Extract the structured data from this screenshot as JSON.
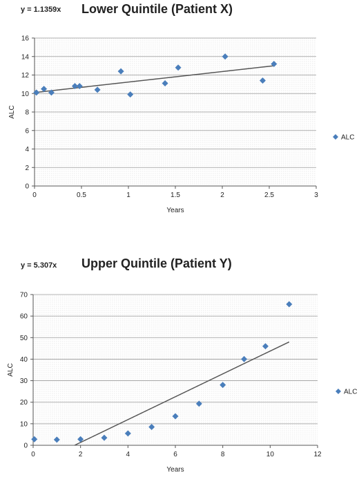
{
  "chart_data": [
    {
      "type": "scatter",
      "title": "Lower Quintile (Patient X)",
      "equation": "y = 1.1359x",
      "xlabel": "Years",
      "ylabel": "ALC",
      "xlim": [
        0,
        3
      ],
      "ylim": [
        0,
        16
      ],
      "xticks": [
        "0",
        "0.5",
        "1",
        "1.5",
        "2",
        "2.5",
        "3"
      ],
      "yticks": [
        "0",
        "2",
        "4",
        "6",
        "8",
        "10",
        "12",
        "14",
        "16"
      ],
      "grid": true,
      "legend_position": "right",
      "series": [
        {
          "name": "ALC",
          "color": "#4a7ebb",
          "x": [
            0.02,
            0.1,
            0.18,
            0.43,
            0.48,
            0.67,
            0.92,
            1.02,
            1.39,
            1.53,
            2.03,
            2.43,
            2.55
          ],
          "y": [
            10.1,
            10.5,
            10.1,
            10.8,
            10.8,
            10.4,
            12.4,
            9.9,
            11.1,
            12.8,
            14.0,
            11.4,
            13.2
          ]
        }
      ],
      "trendline": {
        "x": [
          0,
          2.55
        ],
        "y": [
          10.1,
          13.0
        ],
        "color": "#555555"
      }
    },
    {
      "type": "scatter",
      "title": "Upper Quintile (Patient Y)",
      "equation": "y = 5.307x",
      "xlabel": "Years",
      "ylabel": "ALC",
      "xlim": [
        0,
        12
      ],
      "ylim": [
        0,
        70
      ],
      "xticks": [
        "0",
        "2",
        "4",
        "6",
        "8",
        "10",
        "12"
      ],
      "yticks": [
        "0",
        "10",
        "20",
        "30",
        "40",
        "50",
        "60",
        "70"
      ],
      "grid": true,
      "legend_position": "right",
      "series": [
        {
          "name": "ALC",
          "color": "#4a7ebb",
          "x": [
            0.05,
            1.0,
            2.0,
            3.0,
            4.0,
            5.0,
            6.0,
            7.0,
            8.0,
            8.9,
            9.8,
            10.8
          ],
          "y": [
            2.8,
            2.6,
            2.8,
            3.5,
            5.5,
            8.5,
            13.5,
            19.3,
            28.0,
            40.0,
            46.0,
            65.5
          ]
        }
      ],
      "trendline": {
        "x": [
          1.75,
          10.8
        ],
        "y": [
          0,
          48
        ],
        "color": "#555555"
      }
    }
  ]
}
